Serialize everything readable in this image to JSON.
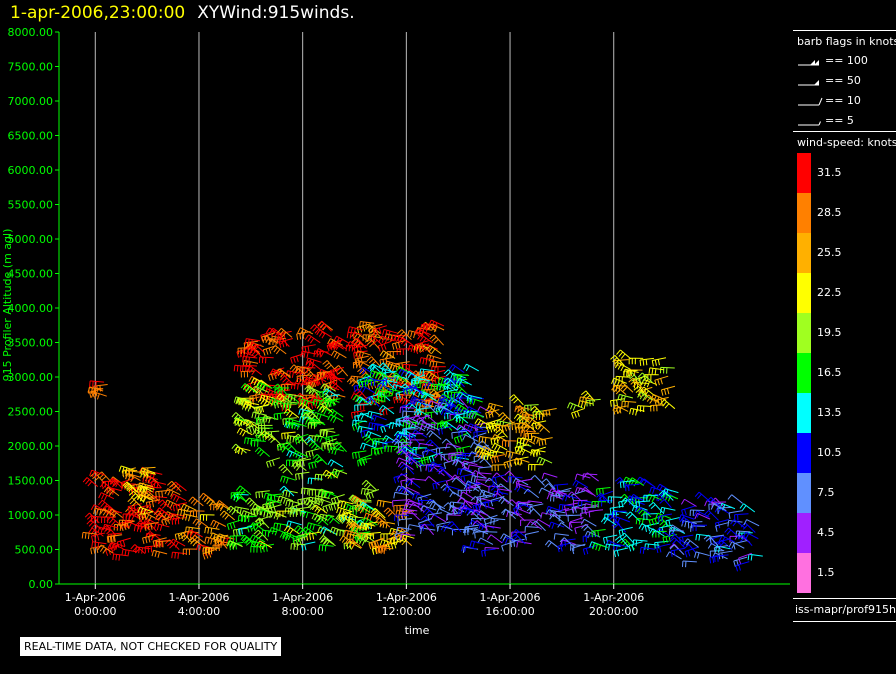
{
  "header": {
    "timestamp": "1-apr-2006,23:00:00",
    "product": "XYWind:915winds."
  },
  "chart_data": {
    "type": "wind-barb-profile",
    "xlabel": "time",
    "ylabel": "915 Profiler Altitude (m agl)",
    "ylim": [
      0,
      8000
    ],
    "xlim_hours": [
      -1.4,
      26.8
    ],
    "ytick_values": [
      0,
      500,
      1000,
      1500,
      2000,
      2500,
      3000,
      3500,
      4000,
      4500,
      5000,
      5500,
      6000,
      6500,
      7000,
      7500,
      8000
    ],
    "ytick_labels": [
      "0.00",
      "500.00",
      "1000.00",
      "1500.00",
      "2000.00",
      "2500.00",
      "3000.00",
      "3500.00",
      "4000.00",
      "4500.00",
      "5000.00",
      "5500.00",
      "6000.00",
      "6500.00",
      "7000.00",
      "7500.00",
      "8000.00"
    ],
    "xticks": [
      {
        "hour": 0,
        "date": "1-Apr-2006",
        "time": "0:00:00"
      },
      {
        "hour": 4,
        "date": "1-Apr-2006",
        "time": "4:00:00"
      },
      {
        "hour": 8,
        "date": "1-Apr-2006",
        "time": "8:00:00"
      },
      {
        "hour": 12,
        "date": "1-Apr-2006",
        "time": "12:00:00"
      },
      {
        "hour": 16,
        "date": "1-Apr-2006",
        "time": "16:00:00"
      },
      {
        "hour": 20,
        "date": "1-Apr-2006",
        "time": "20:00:00"
      }
    ],
    "vertical_gridlines": true,
    "wind_clusters": [
      {
        "start_hour": 0.0,
        "end_hour": 3.6,
        "alt_low": 400,
        "alt_high": 1600,
        "speed": 31
      },
      {
        "start_hour": 3.6,
        "end_hour": 5.6,
        "alt_low": 500,
        "alt_high": 1200,
        "speed": 27
      },
      {
        "start_hour": 5.6,
        "end_hour": 11.0,
        "alt_low": 500,
        "alt_high": 1400,
        "speed": 18
      },
      {
        "start_hour": 9.8,
        "end_hour": 12.4,
        "alt_low": 500,
        "alt_high": 1200,
        "speed": 26
      },
      {
        "start_hour": 5.8,
        "end_hour": 9.8,
        "alt_low": 2600,
        "alt_high": 3700,
        "speed": 31
      },
      {
        "start_hour": 5.8,
        "end_hour": 7.6,
        "alt_low": 1800,
        "alt_high": 2900,
        "speed": 20
      },
      {
        "start_hour": 7.6,
        "end_hour": 9.8,
        "alt_low": 1500,
        "alt_high": 2800,
        "speed": 18
      },
      {
        "start_hour": 10.2,
        "end_hour": 13.6,
        "alt_low": 2500,
        "alt_high": 3800,
        "speed": 29
      },
      {
        "start_hour": 10.4,
        "end_hour": 14.6,
        "alt_low": 1800,
        "alt_high": 3100,
        "speed": 14
      },
      {
        "start_hour": 12.0,
        "end_hour": 15.4,
        "alt_low": 700,
        "alt_high": 2600,
        "speed": 7
      },
      {
        "start_hour": 15.2,
        "end_hour": 17.8,
        "alt_low": 1700,
        "alt_high": 2600,
        "speed": 24
      },
      {
        "start_hour": 14.6,
        "end_hour": 19.6,
        "alt_low": 500,
        "alt_high": 1600,
        "speed": 7
      },
      {
        "start_hour": 19.6,
        "end_hour": 22.6,
        "alt_low": 500,
        "alt_high": 1500,
        "speed": 13
      },
      {
        "start_hour": 22.6,
        "end_hour": 25.8,
        "alt_low": 300,
        "alt_high": 1200,
        "speed": 9
      },
      {
        "start_hour": 20.4,
        "end_hour": 22.4,
        "alt_low": 2500,
        "alt_high": 3300,
        "speed": 23
      },
      {
        "start_hour": 13.8,
        "end_hour": 15.0,
        "alt_low": 2300,
        "alt_high": 3100,
        "speed": 14
      },
      {
        "start_hour": 18.8,
        "end_hour": 19.6,
        "alt_low": 2500,
        "alt_high": 2700,
        "speed": 22
      },
      {
        "start_hour": 0.3,
        "end_hour": 0.5,
        "alt_low": 2700,
        "alt_high": 3000,
        "speed": 31
      },
      {
        "start_hour": 1.4,
        "end_hour": 2.4,
        "alt_low": 1000,
        "alt_high": 1700,
        "speed": 24
      }
    ]
  },
  "legend_barbs": {
    "title": "barb flags in knots",
    "items": [
      {
        "label": "== 100",
        "kind": "flags100"
      },
      {
        "label": "== 50",
        "kind": "flag50"
      },
      {
        "label": "== 10",
        "kind": "barb10"
      },
      {
        "label": "== 5",
        "kind": "barb5"
      }
    ]
  },
  "legend_speed": {
    "title": "wind-speed: knots",
    "bins": [
      {
        "label": "31.5",
        "color": "#ff0000"
      },
      {
        "label": "28.5",
        "color": "#ff8000"
      },
      {
        "label": "25.5",
        "color": "#ffb000"
      },
      {
        "label": "22.5",
        "color": "#ffff00"
      },
      {
        "label": "19.5",
        "color": "#a0ff20"
      },
      {
        "label": "16.5",
        "color": "#00ff00"
      },
      {
        "label": "13.5",
        "color": "#00ffff"
      },
      {
        "label": "10.5",
        "color": "#0000ff"
      },
      {
        "label": "7.5",
        "color": "#6090ff"
      },
      {
        "label": "4.5",
        "color": "#a020ff"
      },
      {
        "label": "1.5",
        "color": "#ff70e0"
      }
    ]
  },
  "footer": {
    "path": "iss-mapr/prof915h",
    "qc_note": "REAL-TIME DATA, NOT CHECKED FOR QUALITY"
  }
}
